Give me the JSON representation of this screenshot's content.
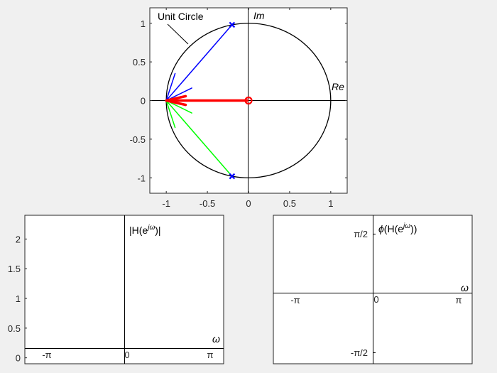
{
  "chart_data": [
    {
      "type": "scatter",
      "panel": "pole-zero plot",
      "xlim": [
        -1.2,
        1.2
      ],
      "ylim": [
        -1.2,
        1.2
      ],
      "x_ticks": [
        -1,
        -0.5,
        0,
        0.5,
        1
      ],
      "x_tick_labels": [
        "-1",
        "-0.5",
        "0",
        "0.5",
        "1"
      ],
      "y_ticks": [
        1,
        0.5,
        0,
        -0.5,
        -1
      ],
      "y_tick_labels": [
        "1",
        "0.5",
        "0",
        "-0.5",
        "-1"
      ],
      "annotations": {
        "unit_circle": "Unit Circle",
        "im_axis": "Im",
        "re_axis": "Re"
      },
      "unit_circle_radius": 1,
      "poles": [
        {
          "re": -0.2,
          "im": 0.98
        },
        {
          "re": -0.2,
          "im": -0.98
        }
      ],
      "zeros": [
        {
          "re": 0,
          "im": 0
        }
      ],
      "evaluation_point": {
        "re": -1,
        "im": 0
      },
      "vectors": [
        {
          "name": "pole vector upper",
          "color": "#0000ff",
          "from": [
            -1,
            0
          ],
          "to": [
            -0.2,
            0.98
          ]
        },
        {
          "name": "pole vector lower",
          "color": "#00ff00",
          "from": [
            -1,
            0
          ],
          "to": [
            -0.2,
            -0.98
          ]
        },
        {
          "name": "zero vector",
          "color": "#ff0000",
          "from": [
            -1,
            0
          ],
          "to": [
            0,
            0
          ]
        }
      ],
      "colors": {
        "pole": "#0000ff",
        "zero": "#ff0000",
        "upper": "#0000ff",
        "lower": "#00ff00"
      }
    },
    {
      "type": "line",
      "panel": "magnitude response",
      "title": "|H(e^jω)|",
      "xlabel": "ω",
      "xlim": [
        -3.6,
        3.6
      ],
      "ylim": [
        -0.1,
        2.4
      ],
      "x_tick_labels": [
        "-π",
        "0",
        "π"
      ],
      "y_ticks": [
        2,
        1.5,
        1,
        0.5,
        0
      ],
      "y_tick_labels": [
        "2",
        "1.5",
        "1",
        "0.5",
        "0"
      ],
      "series": []
    },
    {
      "type": "line",
      "panel": "phase response",
      "title": "φ(H(e^jω))",
      "xlabel": "ω",
      "xlim": [
        -3.6,
        3.6
      ],
      "ylim": [
        -1.9,
        1.9
      ],
      "x_tick_labels": [
        "-π",
        "0",
        "π"
      ],
      "y_tick_labels": [
        "π/2",
        "-π/2"
      ],
      "series": []
    }
  ]
}
